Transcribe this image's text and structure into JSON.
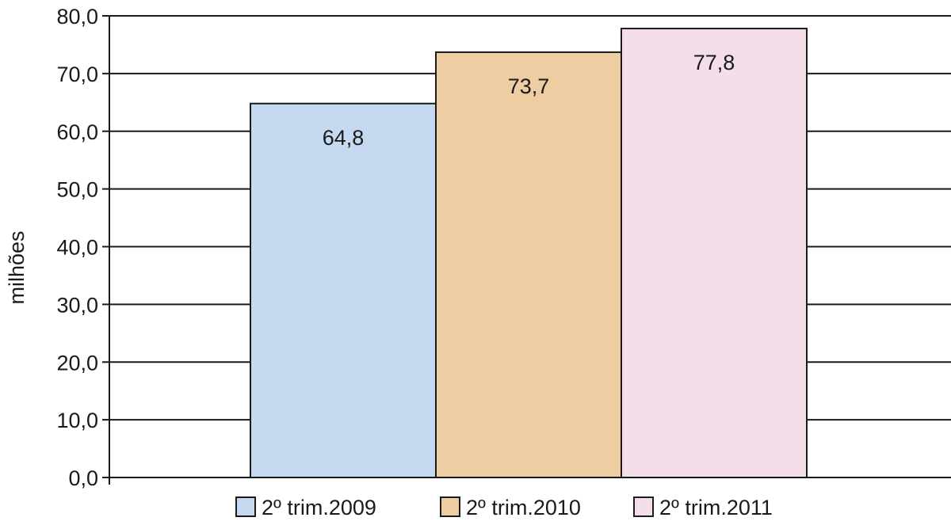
{
  "chart_data": {
    "type": "bar",
    "title": "",
    "xlabel": "",
    "ylabel": "milhões",
    "ylim": [
      0,
      80
    ],
    "ytick_step": 10,
    "ytick_labels": [
      "0,0",
      "10,0",
      "20,0",
      "30,0",
      "40,0",
      "50,0",
      "60,0",
      "70,0",
      "80,0"
    ],
    "grid": true,
    "legend_position": "bottom",
    "categories": [
      "2º trim.2009",
      "2º trim.2010",
      "2º trim.2011"
    ],
    "values": [
      64.8,
      73.7,
      77.8
    ],
    "value_labels": [
      "64,8",
      "73,7",
      "77,8"
    ],
    "colors": [
      "#c5daf0",
      "#edcda1",
      "#f4deea"
    ],
    "legend": [
      {
        "label": "2º trim.2009",
        "color": "#c5daf0"
      },
      {
        "label": "2º trim.2010",
        "color": "#edcda1"
      },
      {
        "label": "2º trim.2011",
        "color": "#f4deea"
      }
    ]
  }
}
